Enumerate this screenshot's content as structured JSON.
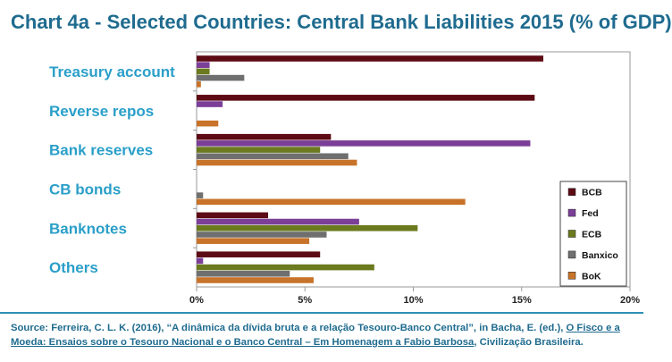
{
  "header": {
    "title": "Chart 4a - Selected Countries: Central Bank Liabilities 2015 (% of GDP)"
  },
  "source": {
    "part1": "Source: Ferreira, C. L. K. (2016), “A dinâmica da dívida bruta e a relação Tesouro-Banco Central”, in Bacha, E. (ed.), ",
    "link": "O Fisco e a Moeda: Ensaios sobre o Tesouro Nacional e o Banco Central – Em Homenagem a Fabio Barbosa",
    "part2": ", Civilização Brasileira."
  },
  "chart_data": {
    "type": "bar",
    "orientation": "horizontal",
    "title": "Chart 4a - Selected Countries: Central Bank Liabilities 2015 (% of GDP)",
    "categories": [
      "Treasury account",
      "Reverse repos",
      "Bank reserves",
      "CB bonds",
      "Banknotes",
      "Others"
    ],
    "xlim": [
      0,
      20
    ],
    "xticks": [
      0,
      5,
      10,
      15,
      20
    ],
    "xtick_labels": [
      "0%",
      "5%",
      "10%",
      "15%",
      "20%"
    ],
    "grid": false,
    "legend_position": "right",
    "series": [
      {
        "name": "BCB",
        "color": "#5c0a14",
        "values": [
          16.0,
          15.6,
          6.2,
          0.0,
          3.3,
          5.7
        ]
      },
      {
        "name": "Fed",
        "color": "#7b3f98",
        "values": [
          0.6,
          1.2,
          15.4,
          0.0,
          7.5,
          0.3
        ]
      },
      {
        "name": "ECB",
        "color": "#6b7a1e",
        "values": [
          0.6,
          0.0,
          5.7,
          0.0,
          10.2,
          8.2
        ]
      },
      {
        "name": "Banxico",
        "color": "#6f6f6f",
        "values": [
          2.2,
          0.0,
          7.0,
          0.3,
          6.0,
          4.3
        ]
      },
      {
        "name": "BoK",
        "color": "#c8732a",
        "values": [
          0.2,
          1.0,
          7.4,
          12.4,
          5.2,
          5.4
        ]
      }
    ]
  }
}
